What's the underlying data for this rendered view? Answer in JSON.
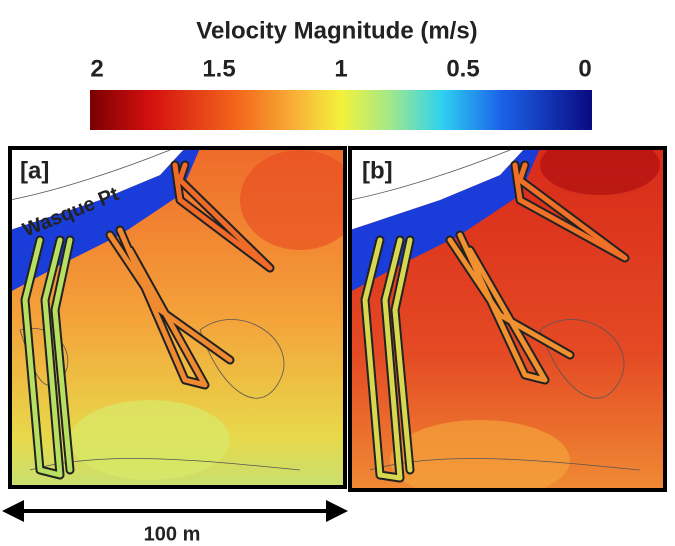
{
  "colorbar": {
    "title": "Velocity Magnitude (m/s)",
    "ticks": [
      2,
      1.5,
      1,
      0.5,
      0
    ],
    "lim": [
      2,
      0
    ]
  },
  "panels": [
    {
      "label": "[a]",
      "place": "Wasque Pt"
    },
    {
      "label": "[b]"
    }
  ],
  "scale_bar": "100 m"
}
